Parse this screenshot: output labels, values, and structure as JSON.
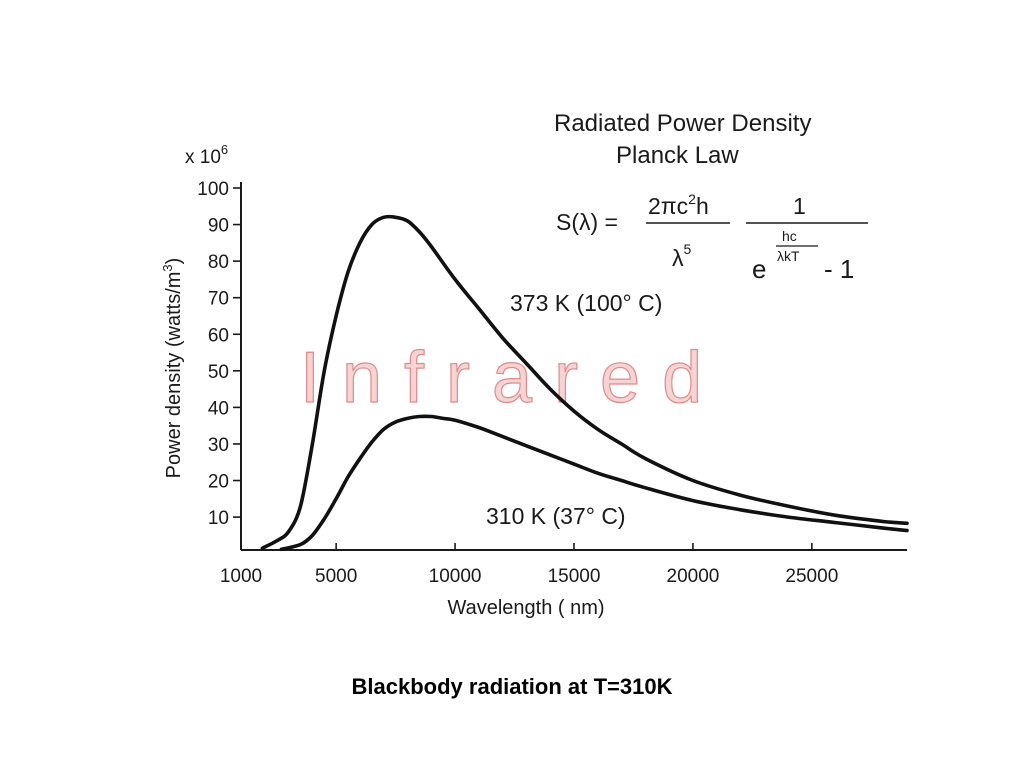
{
  "caption": "Blackbody radiation at T=310K",
  "chart_data": {
    "type": "line",
    "title": "Radiated Power Density",
    "subtitle": "Planck Law",
    "xlabel": "Wavelength ( nm)",
    "ylabel": "Power density (watts/m",
    "ylabel_sup": "3",
    "ylabel_close": ")",
    "y_multiplier": "x 10",
    "y_multiplier_exp": "6",
    "xlim": [
      1000,
      29000
    ],
    "ylim": [
      1,
      100
    ],
    "x_ticks": [
      1000,
      5000,
      10000,
      15000,
      20000,
      25000
    ],
    "y_ticks": [
      10,
      20,
      30,
      40,
      50,
      60,
      70,
      80,
      90,
      100
    ],
    "grid": false,
    "watermark": "Infrared",
    "formula": {
      "lhs": "S(λ) =",
      "num": "2πc",
      "num_sup": "2",
      "num_tail": "h",
      "den": "λ",
      "den_sup": "5",
      "frac2_num": "1",
      "frac2_den_base": "e",
      "frac2_den_exp_num": "hc",
      "frac2_den_exp_den": "λkT",
      "frac2_den_tail": "- 1"
    },
    "series": [
      {
        "name": "373 K (100° C)",
        "color": "#111111",
        "x": [
          1900,
          2500,
          3000,
          3500,
          4000,
          4500,
          5000,
          5500,
          6000,
          6500,
          7000,
          7500,
          8000,
          8500,
          9000,
          10000,
          11000,
          12000,
          13000,
          14000,
          15000,
          16000,
          17000,
          18000,
          20000,
          22000,
          24000,
          26000,
          28000,
          29000
        ],
        "values": [
          1.5,
          3.5,
          6,
          13,
          30,
          50,
          65,
          77,
          85,
          90,
          92,
          92,
          91,
          88,
          84,
          75,
          67,
          59,
          52,
          45,
          39,
          34,
          30,
          26,
          20,
          16,
          13,
          10.5,
          8.8,
          8.3
        ]
      },
      {
        "name": "310 K (37° C)",
        "color": "#111111",
        "x": [
          2700,
          3500,
          4000,
          4500,
          5000,
          5500,
          6000,
          6500,
          7000,
          7500,
          8000,
          8500,
          9000,
          9500,
          10000,
          11000,
          12000,
          13000,
          14000,
          15000,
          16000,
          17000,
          18000,
          20000,
          22000,
          24000,
          26000,
          28000,
          29000
        ],
        "values": [
          1.2,
          2.5,
          5,
          9.5,
          15,
          21,
          26,
          30.5,
          34,
          36,
          37,
          37.5,
          37.5,
          37,
          36.5,
          34.5,
          32,
          29.5,
          27,
          24.5,
          22,
          20,
          18,
          14.5,
          12,
          10,
          8.5,
          7,
          6.3
        ]
      }
    ]
  }
}
